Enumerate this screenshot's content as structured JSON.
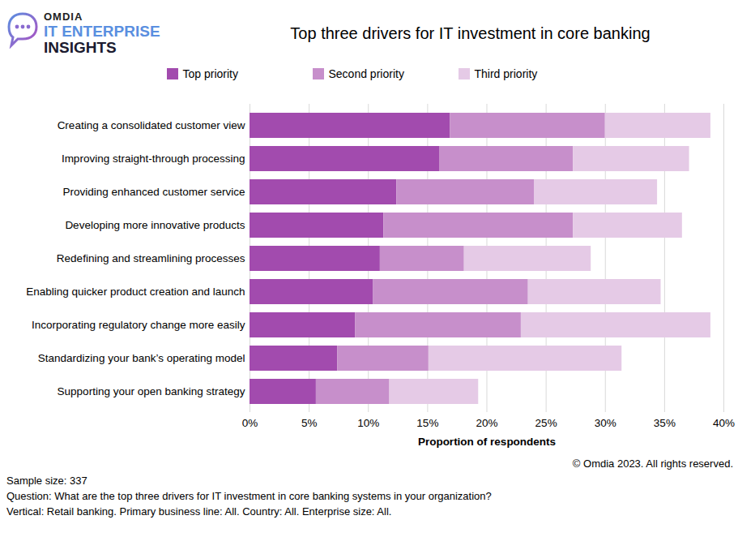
{
  "chart_data": {
    "type": "bar",
    "orientation": "horizontal",
    "stacked": true,
    "title": "Top three drivers for IT investment in core banking",
    "logo": [
      "OMDIA",
      "IT ENTERPRISE",
      "INSIGHTS"
    ],
    "categories": [
      "Creating a consolidated customer view",
      "Improving straight-through processing",
      "Providing enhanced customer service",
      "Developing more innovative products",
      "Redefining and streamlining processes",
      "Enabling quicker product creation and launch",
      "Incorporating regulatory change more easily",
      "Standardizing your bank’s operating model",
      "Supporting your open banking strategy"
    ],
    "series": [
      {
        "name": "Top priority",
        "color": "#a24bae",
        "values": [
          16.9,
          16.0,
          12.4,
          11.3,
          11.0,
          10.4,
          8.9,
          7.4,
          5.6
        ]
      },
      {
        "name": "Second priority",
        "color": "#c78fcb",
        "values": [
          13.1,
          11.3,
          11.6,
          16.0,
          7.1,
          13.1,
          14.0,
          7.7,
          6.2
        ]
      },
      {
        "name": "Third priority",
        "color": "#e5cae6",
        "values": [
          8.9,
          9.8,
          10.4,
          9.2,
          10.7,
          11.2,
          16.0,
          16.3,
          7.5
        ]
      }
    ],
    "xlabel": "Proportion of respondents",
    "xlim": [
      0,
      40
    ],
    "xticks": [
      {
        "value": 0,
        "label": "0%"
      },
      {
        "value": 5,
        "label": "5%"
      },
      {
        "value": 10,
        "label": "10%"
      },
      {
        "value": 15,
        "label": "15%"
      },
      {
        "value": 20,
        "label": "20%"
      },
      {
        "value": 25,
        "label": "25%"
      },
      {
        "value": 30,
        "label": "30%"
      },
      {
        "value": 35,
        "label": "35%"
      },
      {
        "value": 40,
        "label": "40%"
      }
    ],
    "grid": true,
    "legend": "top",
    "copyright": "© Omdia 2023. All rights reserved.",
    "notes": [
      "Sample size: 337",
      "Question: What are the top three drivers for IT investment in core banking systems in your organization?",
      "Vertical: Retail banking. Primary business line: All. Country: All. Enterprise size: All."
    ]
  }
}
